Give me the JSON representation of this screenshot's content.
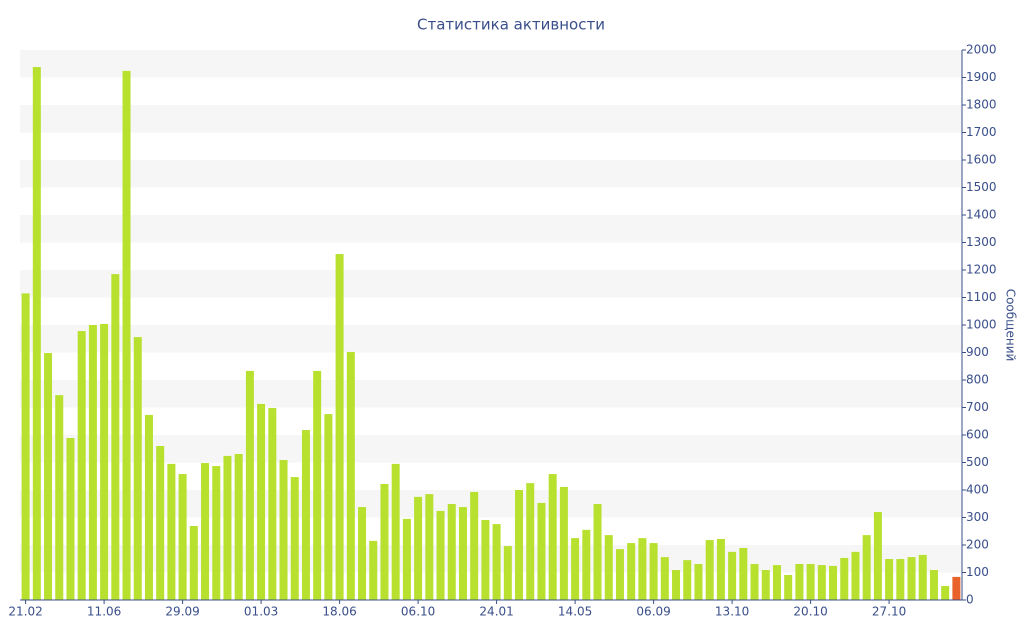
{
  "chart_data": {
    "type": "bar",
    "title": "Статистика активности",
    "y_label": "Сообщений",
    "categories": [
      "21.02",
      null,
      null,
      null,
      null,
      null,
      null,
      "11.06",
      null,
      null,
      null,
      null,
      null,
      null,
      "29.09",
      null,
      null,
      null,
      null,
      null,
      null,
      "01.03",
      null,
      null,
      null,
      null,
      null,
      null,
      "18.06",
      null,
      null,
      null,
      null,
      null,
      null,
      "06.10",
      null,
      null,
      null,
      null,
      null,
      null,
      "24.01",
      null,
      null,
      null,
      null,
      null,
      null,
      "14.05",
      null,
      null,
      null,
      null,
      null,
      null,
      "06.09",
      null,
      null,
      null,
      null,
      null,
      null,
      "13.10",
      null,
      null,
      null,
      null,
      null,
      null,
      "20.10",
      null,
      null,
      null,
      null,
      null,
      null,
      "27.10",
      null,
      null,
      null,
      null,
      null,
      null
    ],
    "values": [
      1115,
      1938,
      898,
      745,
      589,
      978,
      1000,
      1004,
      1185,
      1924,
      956,
      673,
      560,
      495,
      458,
      269,
      498,
      487,
      524,
      531,
      833,
      713,
      698,
      509,
      447,
      618,
      833,
      676,
      1258,
      902,
      338,
      215,
      422,
      495,
      295,
      375,
      385,
      324,
      349,
      338,
      393,
      291,
      276,
      196,
      400,
      425,
      353,
      458,
      411,
      225,
      255,
      349,
      236,
      185,
      207,
      225,
      207,
      156,
      109,
      145,
      131,
      218,
      222,
      175,
      189,
      131,
      109,
      127,
      91,
      131,
      131,
      127,
      124,
      153,
      175,
      236,
      320,
      149,
      149,
      156,
      164,
      109,
      51,
      84
    ],
    "colors": [
      "#b7e02f",
      "#b7e02f",
      "#b7e02f",
      "#b7e02f",
      "#b7e02f",
      "#b7e02f",
      "#b7e02f",
      "#b7e02f",
      "#b7e02f",
      "#b7e02f",
      "#b7e02f",
      "#b7e02f",
      "#b7e02f",
      "#b7e02f",
      "#b7e02f",
      "#b7e02f",
      "#b7e02f",
      "#b7e02f",
      "#b7e02f",
      "#b7e02f",
      "#b7e02f",
      "#b7e02f",
      "#b7e02f",
      "#b7e02f",
      "#b7e02f",
      "#b7e02f",
      "#b7e02f",
      "#b7e02f",
      "#b7e02f",
      "#b7e02f",
      "#b7e02f",
      "#b7e02f",
      "#b7e02f",
      "#b7e02f",
      "#b7e02f",
      "#b7e02f",
      "#b7e02f",
      "#b7e02f",
      "#b7e02f",
      "#b7e02f",
      "#b7e02f",
      "#b7e02f",
      "#b7e02f",
      "#b7e02f",
      "#b7e02f",
      "#b7e02f",
      "#b7e02f",
      "#b7e02f",
      "#b7e02f",
      "#b7e02f",
      "#b7e02f",
      "#b7e02f",
      "#b7e02f",
      "#b7e02f",
      "#b7e02f",
      "#b7e02f",
      "#b7e02f",
      "#b7e02f",
      "#b7e02f",
      "#b7e02f",
      "#b7e02f",
      "#b7e02f",
      "#b7e02f",
      "#b7e02f",
      "#b7e02f",
      "#b7e02f",
      "#b7e02f",
      "#b7e02f",
      "#b7e02f",
      "#b7e02f",
      "#b7e02f",
      "#b7e02f",
      "#b7e02f",
      "#b7e02f",
      "#b7e02f",
      "#b7e02f",
      "#b7e02f",
      "#b7e02f",
      "#b7e02f",
      "#b7e02f",
      "#b7e02f",
      "#b7e02f",
      "#b7e02f",
      "#e8622a"
    ],
    "ylim": [
      0,
      2000
    ],
    "yticks": [
      0,
      100,
      200,
      300,
      400,
      500,
      600,
      700,
      800,
      900,
      1000,
      1100,
      1200,
      1300,
      1400,
      1500,
      1600,
      1700,
      1800,
      1900,
      2000
    ],
    "y_axis_side": "right",
    "grid": "bands"
  }
}
